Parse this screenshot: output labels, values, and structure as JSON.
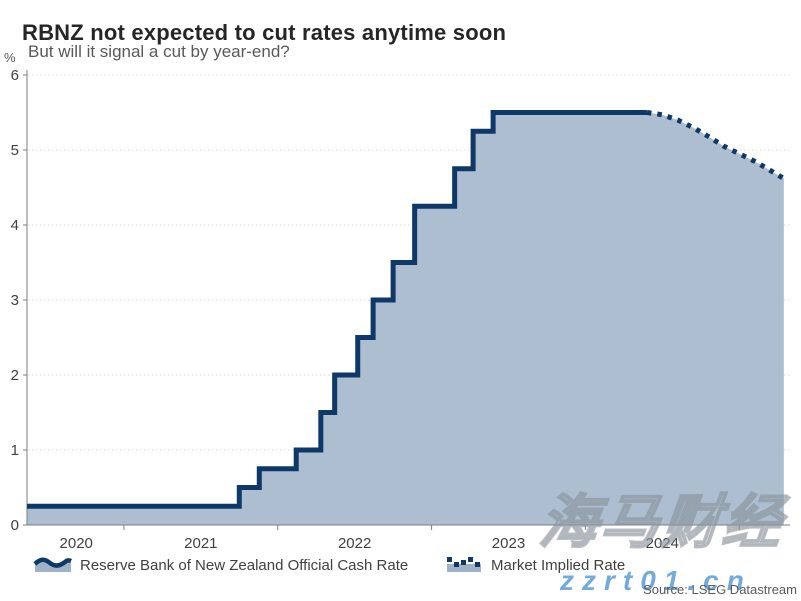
{
  "header": {
    "title": "RBNZ not expected to cut rates anytime soon",
    "subtitle": "But will it signal a cut by year-end?"
  },
  "source": "Source: LSEG Datastream",
  "watermark": {
    "cjk": "海马财经",
    "latin": "zzrt01.cn"
  },
  "colors": {
    "line": "#0d3868",
    "fill": "#9fb3c8",
    "grid": "#d9d9d9",
    "axis": "#7f7f7f",
    "tick_label": "#404040",
    "text_gray": "#595959",
    "watermark_blue": "#5b9bd5"
  },
  "chart_data": {
    "type": "area",
    "title": "RBNZ not expected to cut rates anytime soon",
    "subtitle": "But will it signal a cut by year-end?",
    "xlabel": "",
    "ylabel": "%",
    "xlim": [
      2020.37,
      2025.33
    ],
    "ylim": [
      0,
      6
    ],
    "grid": "horizontal-dotted",
    "legend_position": "bottom",
    "yticks": [
      0,
      1,
      2,
      3,
      4,
      5,
      6
    ],
    "year_boundary_ticks": [
      2021,
      2022,
      2023,
      2024,
      2025
    ],
    "xtick_labels": [
      {
        "label": "2020",
        "x": 2020.69
      },
      {
        "label": "2021",
        "x": 2021.5
      },
      {
        "label": "2022",
        "x": 2022.5
      },
      {
        "label": "2023",
        "x": 2023.5
      },
      {
        "label": "2024",
        "x": 2024.5
      }
    ],
    "series": [
      {
        "name": "Reserve Bank of New Zealand Official Cash Rate",
        "type": "step-area",
        "points": [
          [
            2020.37,
            0.25
          ],
          [
            2021.75,
            0.5
          ],
          [
            2021.88,
            0.75
          ],
          [
            2022.12,
            1.0
          ],
          [
            2022.28,
            1.5
          ],
          [
            2022.37,
            2.0
          ],
          [
            2022.52,
            2.5
          ],
          [
            2022.62,
            3.0
          ],
          [
            2022.75,
            3.5
          ],
          [
            2022.89,
            4.25
          ],
          [
            2023.15,
            4.75
          ],
          [
            2023.27,
            5.25
          ],
          [
            2023.4,
            5.5
          ],
          [
            2024.4,
            5.5
          ]
        ]
      },
      {
        "name": "Market Implied Rate",
        "type": "dotted-line",
        "points": [
          [
            2024.4,
            5.5
          ],
          [
            2024.5,
            5.47
          ],
          [
            2024.6,
            5.4
          ],
          [
            2024.7,
            5.3
          ],
          [
            2024.8,
            5.18
          ],
          [
            2024.9,
            5.05
          ],
          [
            2025.0,
            4.95
          ],
          [
            2025.1,
            4.85
          ],
          [
            2025.2,
            4.73
          ],
          [
            2025.29,
            4.62
          ]
        ]
      }
    ]
  }
}
